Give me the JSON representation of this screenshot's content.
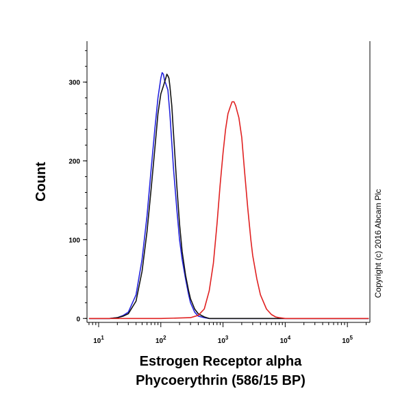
{
  "chart_data": {
    "type": "line",
    "title": "",
    "xlabel_line1": "Estrogen Receptor alpha",
    "xlabel_line2": "Phycoerythrin (586/15 BP)",
    "ylabel": "Count",
    "x_scale": "log",
    "xlim": [
      6.5,
      230000
    ],
    "ylim": [
      -5,
      352
    ],
    "grid": false,
    "legend": "none",
    "y_ticks": [
      0,
      100,
      200,
      300
    ],
    "x_tick_decades": [
      {
        "value": 10,
        "base": "10",
        "exp": "1"
      },
      {
        "value": 100,
        "base": "10",
        "exp": "2"
      },
      {
        "value": 1000,
        "base": "10",
        "exp": "3"
      },
      {
        "value": 10000,
        "base": "10",
        "exp": "4"
      },
      {
        "value": 100000,
        "base": "10",
        "exp": "5"
      }
    ],
    "copyright": "Copyright (c) 2016 Abcam Plc",
    "series": [
      {
        "color": "#2222dd",
        "x": [
          7,
          15,
          20,
          25,
          30,
          40,
          50,
          60,
          70,
          80,
          90,
          100,
          105,
          110,
          115,
          120,
          130,
          140,
          160,
          180,
          200,
          220,
          250,
          280,
          300,
          350,
          400,
          500,
          600,
          800,
          1000,
          2000,
          5000,
          20000,
          100000,
          220000
        ],
        "y": [
          0,
          0,
          1,
          4,
          8,
          30,
          75,
          130,
          190,
          240,
          280,
          305,
          312,
          310,
          302,
          298,
          290,
          260,
          190,
          140,
          100,
          75,
          50,
          30,
          20,
          8,
          3,
          1,
          0,
          0,
          0,
          0,
          0,
          0,
          0,
          0
        ]
      },
      {
        "color": "#111111",
        "x": [
          7,
          15,
          20,
          25,
          30,
          40,
          50,
          60,
          70,
          80,
          90,
          100,
          110,
          120,
          125,
          130,
          135,
          140,
          150,
          160,
          180,
          200,
          220,
          250,
          280,
          300,
          350,
          400,
          500,
          600,
          800,
          1000,
          2000,
          5000,
          20000,
          100000,
          220000
        ],
        "y": [
          0,
          0,
          1,
          3,
          6,
          22,
          60,
          110,
          165,
          215,
          260,
          285,
          295,
          305,
          310,
          308,
          305,
          295,
          270,
          235,
          170,
          120,
          85,
          55,
          35,
          25,
          12,
          6,
          2,
          0,
          0,
          0,
          0,
          0,
          0,
          0,
          0
        ]
      },
      {
        "color": "#e02020",
        "x": [
          7,
          100,
          300,
          400,
          500,
          600,
          700,
          800,
          900,
          1000,
          1100,
          1200,
          1300,
          1400,
          1500,
          1600,
          1700,
          1800,
          2000,
          2200,
          2500,
          2800,
          3000,
          3500,
          4000,
          5000,
          6000,
          7000,
          8000,
          10000,
          20000,
          100000,
          220000
        ],
        "y": [
          0,
          0,
          1,
          4,
          12,
          35,
          70,
          120,
          170,
          210,
          240,
          260,
          268,
          275,
          275,
          270,
          262,
          255,
          230,
          190,
          140,
          100,
          80,
          50,
          30,
          12,
          5,
          2,
          1,
          0,
          0,
          0,
          0
        ]
      }
    ]
  }
}
